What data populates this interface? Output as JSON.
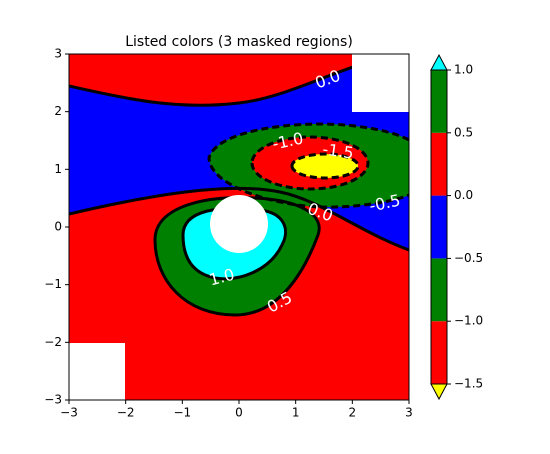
{
  "chart_data": {
    "type": "contourf",
    "title": "Listed colors (3 masked regions)",
    "levels": [
      -1.5,
      -1,
      -0.5,
      0,
      0.5,
      1
    ],
    "band_colors": [
      "red",
      "green",
      "blue",
      "red",
      "green"
    ],
    "under_color": "yellow",
    "over_color": "cyan",
    "mask_color": "white",
    "line_color": "black",
    "xlim": [
      -3,
      3
    ],
    "ylim": [
      -3,
      3
    ],
    "xticks": [
      {
        "value": -3,
        "label": "−3"
      },
      {
        "value": -2,
        "label": "−2"
      },
      {
        "value": -1,
        "label": "−1"
      },
      0,
      1,
      2,
      3
    ],
    "yticks": [
      {
        "value": -3,
        "label": "−3"
      },
      {
        "value": -2,
        "label": "−2"
      },
      {
        "value": -1,
        "label": "−1"
      },
      0,
      1,
      2,
      3
    ],
    "colorbar_ticks": [
      {
        "value": 1,
        "label": "1.0"
      },
      {
        "value": 0.5,
        "label": "0.5"
      },
      {
        "value": 0,
        "label": "0.0"
      },
      {
        "value": -0.5,
        "label": "−0.5"
      },
      {
        "value": -1,
        "label": "−1.0"
      },
      {
        "value": -1.5,
        "label": "−1.5"
      }
    ],
    "contour_labels": [
      {
        "value": 0,
        "label": "0.0"
      },
      {
        "value": -1,
        "label": "-1.0"
      },
      {
        "value": -1.5,
        "label": "-1.5"
      },
      {
        "value": 0,
        "label": "0.0"
      },
      {
        "value": -0.5,
        "label": "-0.5"
      },
      {
        "value": 1,
        "label": "1.0"
      },
      {
        "value": 0.5,
        "label": "0.5"
      }
    ]
  }
}
